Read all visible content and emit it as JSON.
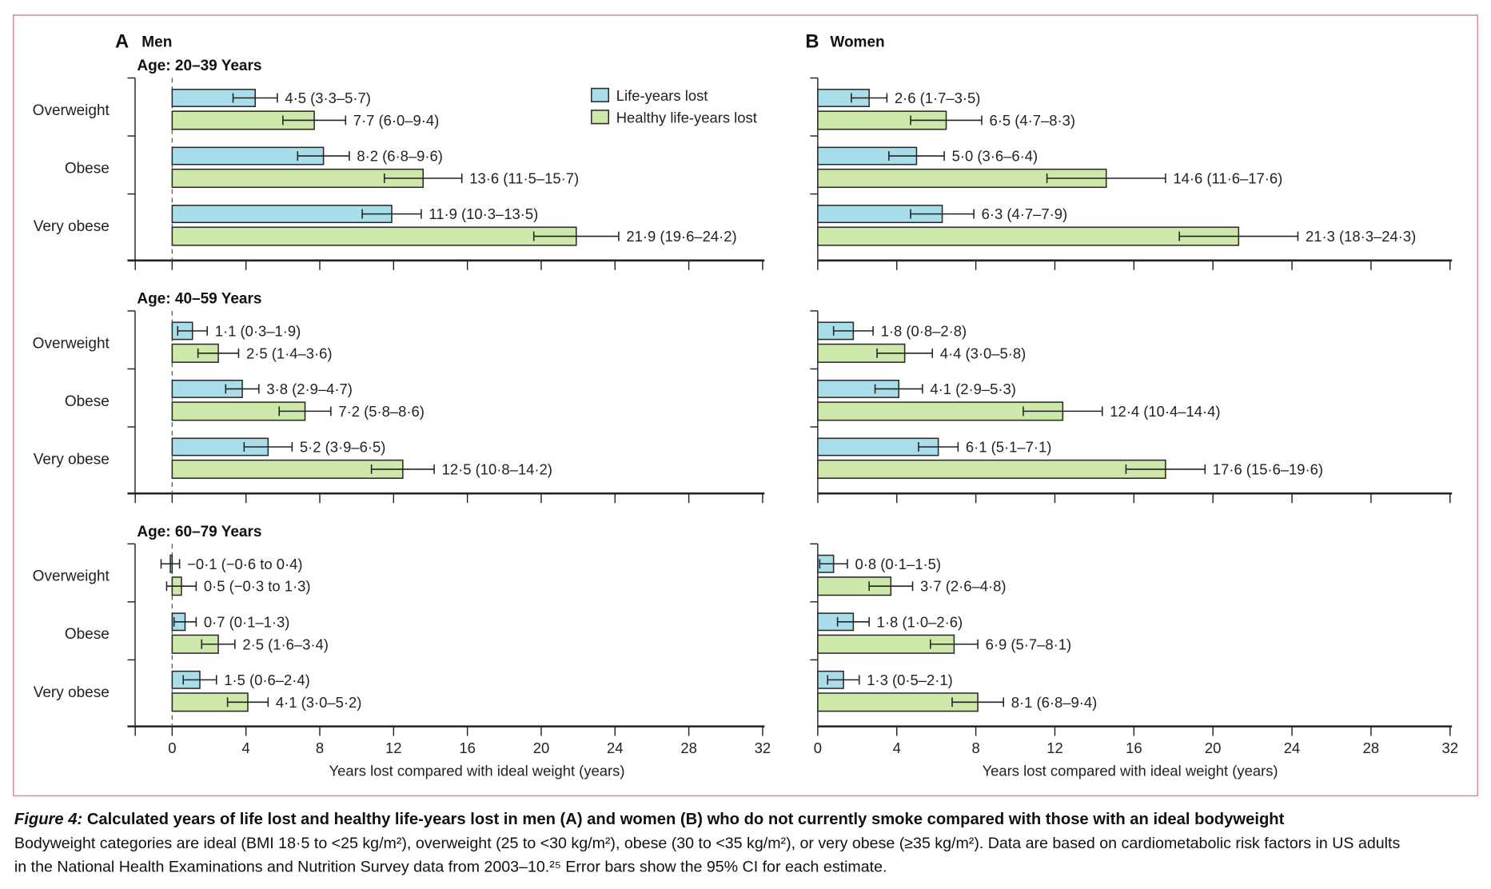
{
  "colors": {
    "life_years": "#a8dde9",
    "healthy_life_years": "#cde8aa",
    "frame": "#d88aa6",
    "bar_stroke": "#2a2a2a"
  },
  "chart_data": [
    {
      "type": "bar",
      "orientation": "horizontal",
      "panel_letter": "A",
      "title": "Men",
      "xlabel": "Years lost compared with ideal weight (years)",
      "xlim": [
        -2,
        32
      ],
      "xticks": [
        0,
        4,
        8,
        12,
        16,
        20,
        24,
        28,
        32
      ],
      "categories": [
        "Overweight",
        "Obese",
        "Very obese"
      ],
      "legend": {
        "placement": "top-right",
        "entries": [
          "Life-years lost",
          "Healthy life-years lost"
        ]
      },
      "groups": [
        {
          "label": "Age: 20–39 Years",
          "series": [
            {
              "name": "Life-years lost",
              "values": [
                4.5,
                8.2,
                11.9
              ],
              "ci": [
                [
                  3.3,
                  5.7
                ],
                [
                  6.8,
                  9.6
                ],
                [
                  10.3,
                  13.5
                ]
              ],
              "labels": [
                "4·5 (3·3–5·7)",
                "8·2 (6·8–9·6)",
                "11·9 (10·3–13·5)"
              ]
            },
            {
              "name": "Healthy life-years lost",
              "values": [
                7.7,
                13.6,
                21.9
              ],
              "ci": [
                [
                  6.0,
                  9.4
                ],
                [
                  11.5,
                  15.7
                ],
                [
                  19.6,
                  24.2
                ]
              ],
              "labels": [
                "7·7 (6·0–9·4)",
                "13·6 (11·5–15·7)",
                "21·9 (19·6–24·2)"
              ]
            }
          ]
        },
        {
          "label": "Age: 40–59 Years",
          "series": [
            {
              "name": "Life-years lost",
              "values": [
                1.1,
                3.8,
                5.2
              ],
              "ci": [
                [
                  0.3,
                  1.9
                ],
                [
                  2.9,
                  4.7
                ],
                [
                  3.9,
                  6.5
                ]
              ],
              "labels": [
                "1·1 (0·3–1·9)",
                "3·8 (2·9–4·7)",
                "5·2 (3·9–6·5)"
              ]
            },
            {
              "name": "Healthy life-years lost",
              "values": [
                2.5,
                7.2,
                12.5
              ],
              "ci": [
                [
                  1.4,
                  3.6
                ],
                [
                  5.8,
                  8.6
                ],
                [
                  10.8,
                  14.2
                ]
              ],
              "labels": [
                "2·5 (1·4–3·6)",
                "7·2 (5·8–8·6)",
                "12·5 (10·8–14·2)"
              ]
            }
          ]
        },
        {
          "label": "Age: 60–79 Years",
          "series": [
            {
              "name": "Life-years lost",
              "values": [
                -0.1,
                0.7,
                1.5
              ],
              "ci": [
                [
                  -0.6,
                  0.4
                ],
                [
                  0.1,
                  1.3
                ],
                [
                  0.6,
                  2.4
                ]
              ],
              "labels": [
                "−0·1 (−0·6 to 0·4)",
                "0·7 (0·1–1·3)",
                "1·5 (0·6–2·4)"
              ]
            },
            {
              "name": "Healthy life-years lost",
              "values": [
                0.5,
                2.5,
                4.1
              ],
              "ci": [
                [
                  -0.3,
                  1.3
                ],
                [
                  1.6,
                  3.4
                ],
                [
                  3.0,
                  5.2
                ]
              ],
              "labels": [
                "0·5 (−0·3 to 1·3)",
                "2·5 (1·6–3·4)",
                "4·1 (3·0–5·2)"
              ]
            }
          ]
        }
      ]
    },
    {
      "type": "bar",
      "orientation": "horizontal",
      "panel_letter": "B",
      "title": "Women",
      "xlabel": "Years lost compared with ideal weight (years)",
      "xlim": [
        0,
        32
      ],
      "xticks": [
        0,
        4,
        8,
        12,
        16,
        20,
        24,
        28,
        32
      ],
      "categories": [
        "Overweight",
        "Obese",
        "Very obese"
      ],
      "groups": [
        {
          "series": [
            {
              "name": "Life-years lost",
              "values": [
                2.6,
                5.0,
                6.3
              ],
              "ci": [
                [
                  1.7,
                  3.5
                ],
                [
                  3.6,
                  6.4
                ],
                [
                  4.7,
                  7.9
                ]
              ],
              "labels": [
                "2·6 (1·7–3·5)",
                "5·0 (3·6–6·4)",
                "6·3 (4·7–7·9)"
              ]
            },
            {
              "name": "Healthy life-years lost",
              "values": [
                6.5,
                14.6,
                21.3
              ],
              "ci": [
                [
                  4.7,
                  8.3
                ],
                [
                  11.6,
                  17.6
                ],
                [
                  18.3,
                  24.3
                ]
              ],
              "labels": [
                "6·5 (4·7–8·3)",
                "14·6 (11·6–17·6)",
                "21·3 (18·3–24·3)"
              ]
            }
          ]
        },
        {
          "series": [
            {
              "name": "Life-years lost",
              "values": [
                1.8,
                4.1,
                6.1
              ],
              "ci": [
                [
                  0.8,
                  2.8
                ],
                [
                  2.9,
                  5.3
                ],
                [
                  5.1,
                  7.1
                ]
              ],
              "labels": [
                "1·8 (0·8–2·8)",
                "4·1 (2·9–5·3)",
                "6·1 (5·1–7·1)"
              ]
            },
            {
              "name": "Healthy life-years lost",
              "values": [
                4.4,
                12.4,
                17.6
              ],
              "ci": [
                [
                  3.0,
                  5.8
                ],
                [
                  10.4,
                  14.4
                ],
                [
                  15.6,
                  19.6
                ]
              ],
              "labels": [
                "4·4 (3·0–5·8)",
                "12·4 (10·4–14·4)",
                "17·6 (15·6–19·6)"
              ]
            }
          ]
        },
        {
          "series": [
            {
              "name": "Life-years lost",
              "values": [
                0.8,
                1.8,
                1.3
              ],
              "ci": [
                [
                  0.1,
                  1.5
                ],
                [
                  1.0,
                  2.6
                ],
                [
                  0.5,
                  2.1
                ]
              ],
              "labels": [
                "0·8 (0·1–1·5)",
                "1·8 (1·0–2·6)",
                "1·3 (0·5–2·1)"
              ]
            },
            {
              "name": "Healthy life-years lost",
              "values": [
                3.7,
                6.9,
                8.1
              ],
              "ci": [
                [
                  2.6,
                  4.8
                ],
                [
                  5.7,
                  8.1
                ],
                [
                  6.8,
                  9.4
                ]
              ],
              "labels": [
                "3·7 (2·6–4·8)",
                "6·9 (5·7–8·1)",
                "8·1 (6·8–9·4)"
              ]
            }
          ]
        }
      ]
    }
  ],
  "caption": {
    "figure_label": "Figure 4:",
    "title": " Calculated years of life lost and healthy life-years lost in men (A) and women (B) who do not currently smoke compared with those with an ideal bodyweight",
    "line1": "Bodyweight categories are ideal (BMI 18·5 to <25 kg/m²), overweight (25 to <30 kg/m²), obese (30 to <35 kg/m²), or very obese (≥35 kg/m²). Data are based on cardiometabolic risk factors in US adults",
    "line2": "in the National Health Examinations and Nutrition Survey data from 2003–10.²⁵ Error bars show the 95% CI for each estimate."
  }
}
